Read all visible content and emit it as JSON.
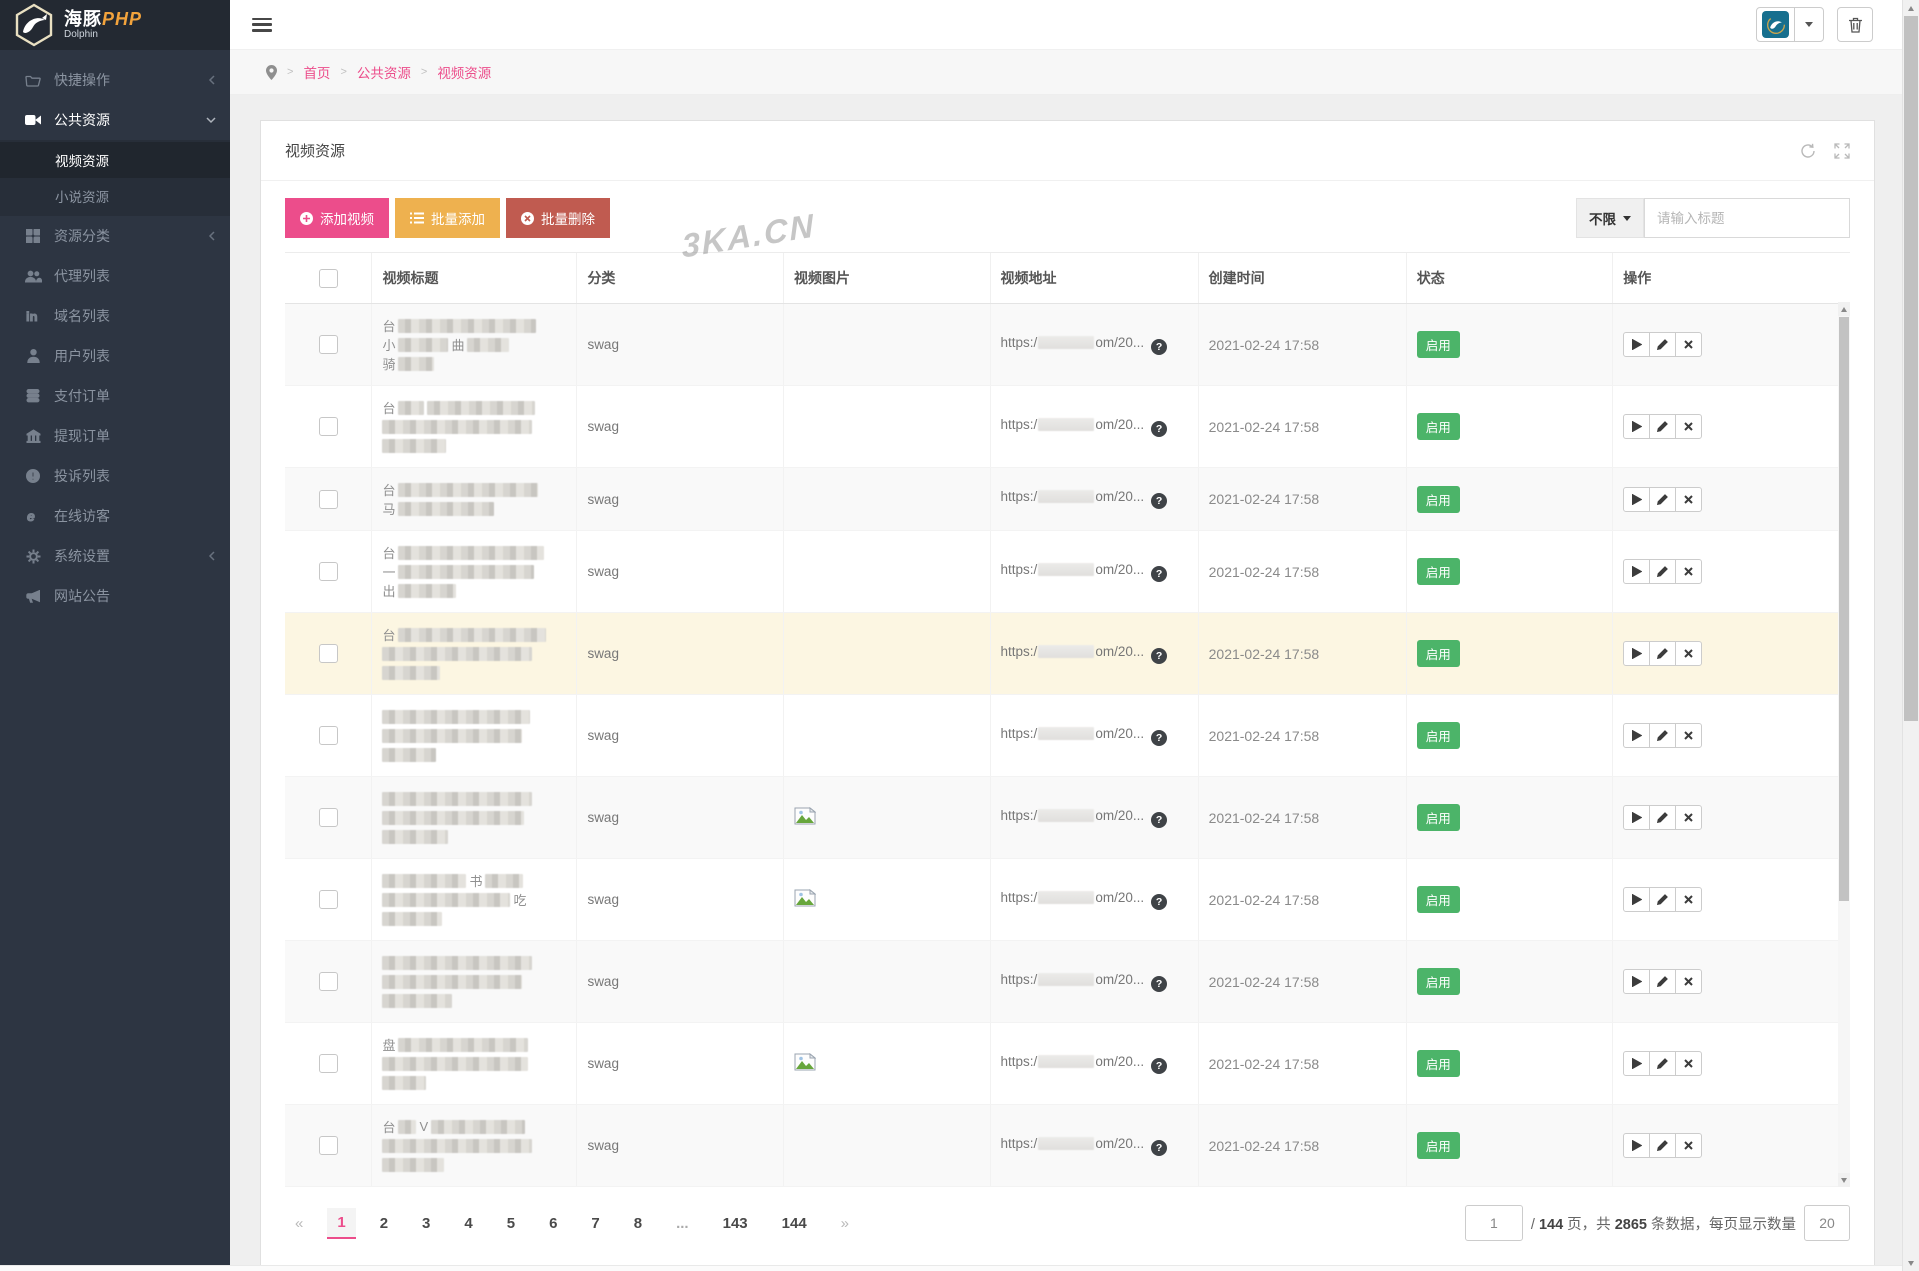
{
  "colors": {
    "accent": "#ec4d8b",
    "warning": "#eeb14f",
    "danger": "#c05b50",
    "success": "#4cb469",
    "highlight_row": "#fcf6e2",
    "sidebar_bg": "#2d3542",
    "sidebar_dark": "#232932"
  },
  "logo": {
    "cn": "海豚",
    "en": "PHP",
    "sub": "Dolphin"
  },
  "sidebar": {
    "items": [
      {
        "icon": "folder-open-icon",
        "label": "快捷操作",
        "chevron": "left"
      },
      {
        "icon": "video-camera-icon",
        "label": "公共资源",
        "chevron": "down",
        "active": true,
        "children": [
          {
            "label": "视频资源",
            "active": true
          },
          {
            "label": "小说资源",
            "active": false
          }
        ]
      },
      {
        "icon": "grid-icon",
        "label": "资源分类",
        "chevron": "left"
      },
      {
        "icon": "users-icon",
        "label": "代理列表"
      },
      {
        "icon": "linkedin-icon",
        "label": "域名列表"
      },
      {
        "icon": "user-icon",
        "label": "用户列表"
      },
      {
        "icon": "database-icon",
        "label": "支付订单"
      },
      {
        "icon": "bank-icon",
        "label": "提现订单"
      },
      {
        "icon": "alert-circle-icon",
        "label": "投诉列表"
      },
      {
        "icon": "explorer-icon",
        "label": "在线访客"
      },
      {
        "icon": "gear-icon",
        "label": "系统设置",
        "chevron": "left"
      },
      {
        "icon": "megaphone-icon",
        "label": "网站公告"
      }
    ]
  },
  "breadcrumb": [
    "首页",
    "公共资源",
    "视频资源"
  ],
  "panel": {
    "title": "视频资源"
  },
  "toolbar": {
    "add_video": "添加视频",
    "batch_add": "批量添加",
    "batch_delete": "批量删除",
    "filter": "不限",
    "search_placeholder": "请输入标题"
  },
  "watermark": "3KA.CN",
  "table": {
    "headers": [
      "视频标题",
      "分类",
      "视频图片",
      "视频地址",
      "创建时间",
      "状态",
      "操作"
    ],
    "url_prefix": "https:/",
    "url_tail": "om/20...",
    "rows": [
      {
        "title": [
          [
            {
              "text": "台"
            },
            {
              "block": 138
            }
          ],
          [
            {
              "text": "小"
            },
            {
              "block": 50
            },
            {
              "text": "曲"
            },
            {
              "block": 42
            }
          ],
          [
            {
              "text": "骑"
            },
            {
              "block": 36
            }
          ]
        ],
        "category": "swag",
        "has_image": false,
        "created": "2021-02-24 17:58",
        "status": "启用",
        "highlight": false
      },
      {
        "title": [
          [
            {
              "text": "台"
            },
            {
              "block": 26
            },
            {
              "block": 108
            }
          ],
          [
            {
              "block": 150
            }
          ],
          [
            {
              "block": 64
            }
          ]
        ],
        "category": "swag",
        "has_image": false,
        "created": "2021-02-24 17:58",
        "status": "启用",
        "highlight": false
      },
      {
        "title": [
          [
            {
              "text": "台"
            },
            {
              "block": 140
            }
          ],
          [
            {
              "text": "马"
            },
            {
              "block": 96
            }
          ]
        ],
        "category": "swag",
        "has_image": false,
        "created": "2021-02-24 17:58",
        "status": "启用",
        "highlight": false
      },
      {
        "title": [
          [
            {
              "text": "台"
            },
            {
              "block": 146
            }
          ],
          [
            {
              "text": "一"
            },
            {
              "block": 136
            }
          ],
          [
            {
              "text": "出"
            },
            {
              "block": 58
            }
          ]
        ],
        "category": "swag",
        "has_image": false,
        "created": "2021-02-24 17:58",
        "status": "启用",
        "highlight": false
      },
      {
        "title": [
          [
            {
              "text": "台"
            },
            {
              "block": 148
            }
          ],
          [
            {
              "block": 150
            }
          ],
          [
            {
              "block": 58
            }
          ]
        ],
        "category": "swag",
        "has_image": false,
        "created": "2021-02-24 17:58",
        "status": "启用",
        "highlight": true
      },
      {
        "title": [
          [
            {
              "block": 148
            }
          ],
          [
            {
              "block": 140
            }
          ],
          [
            {
              "block": 54
            }
          ]
        ],
        "category": "swag",
        "has_image": false,
        "created": "2021-02-24 17:58",
        "status": "启用",
        "highlight": false
      },
      {
        "title": [
          [
            {
              "block": 150
            }
          ],
          [
            {
              "block": 142
            }
          ],
          [
            {
              "block": 66
            }
          ]
        ],
        "category": "swag",
        "has_image": true,
        "created": "2021-02-24 17:58",
        "status": "启用",
        "highlight": false
      },
      {
        "title": [
          [
            {
              "block": 84
            },
            {
              "text": "书"
            },
            {
              "block": 38
            }
          ],
          [
            {
              "block": 128
            },
            {
              "text": "吃"
            }
          ],
          [
            {
              "block": 60
            }
          ]
        ],
        "category": "swag",
        "has_image": true,
        "created": "2021-02-24 17:58",
        "status": "启用",
        "highlight": false
      },
      {
        "title": [
          [
            {
              "block": 150
            }
          ],
          [
            {
              "block": 140
            }
          ],
          [
            {
              "block": 70
            }
          ]
        ],
        "category": "swag",
        "has_image": false,
        "created": "2021-02-24 17:58",
        "status": "启用",
        "highlight": false
      },
      {
        "title": [
          [
            {
              "text": "盘"
            },
            {
              "block": 130
            }
          ],
          [
            {
              "block": 146
            }
          ],
          [
            {
              "block": 44
            }
          ]
        ],
        "category": "swag",
        "has_image": true,
        "created": "2021-02-24 17:58",
        "status": "启用",
        "highlight": false
      },
      {
        "title": [
          [
            {
              "text": "台"
            },
            {
              "block": 18
            },
            {
              "text": "V"
            },
            {
              "block": 94
            }
          ],
          [
            {
              "block": 150
            }
          ],
          [
            {
              "block": 62
            }
          ]
        ],
        "category": "swag",
        "has_image": false,
        "created": "2021-02-24 17:58",
        "status": "启用",
        "highlight": false
      }
    ]
  },
  "pagination": {
    "prev": "«",
    "next": "»",
    "pages": [
      "1",
      "2",
      "3",
      "4",
      "5",
      "6",
      "7",
      "8",
      "...",
      "143",
      "144"
    ],
    "active": "1"
  },
  "page_info": {
    "page": "1",
    "slash": "/",
    "total_pages": "144",
    "pages_label": "页，共",
    "records": "2865",
    "records_label": "条数据，每页显示数量",
    "per_page": "20"
  }
}
